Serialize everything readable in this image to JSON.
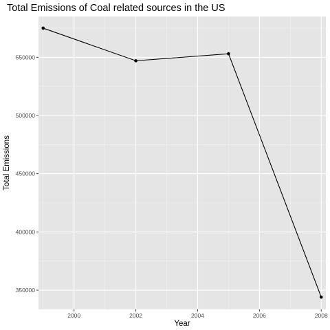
{
  "chart_data": {
    "type": "line",
    "title": "Total Emissions of Coal related sources in the US",
    "xlabel": "Year",
    "ylabel": "Total Emissions",
    "x": [
      1999,
      2002,
      2005,
      2008
    ],
    "series": [
      {
        "values": [
          575000,
          547000,
          553000,
          344000
        ]
      }
    ],
    "xlim": [
      1998.85,
      2008.15
    ],
    "ylim": [
      333500,
      585000
    ],
    "xticks": [
      2000,
      2002,
      2004,
      2006,
      2008
    ],
    "xtick_labels": [
      "2000",
      "2002",
      "2004",
      "2006",
      "2008"
    ],
    "yticks": [
      350000,
      400000,
      450000,
      500000,
      550000
    ],
    "ytick_labels": [
      "350000",
      "400000",
      "450000",
      "500000",
      "550000"
    ],
    "grid": true,
    "legend": "none",
    "colors": {
      "panel_background": "#e5e5e5",
      "grid_major": "#ffffff",
      "grid_minor": "#f2f2f2",
      "line": "#000000",
      "tick_label": "#4d4d4d"
    }
  }
}
